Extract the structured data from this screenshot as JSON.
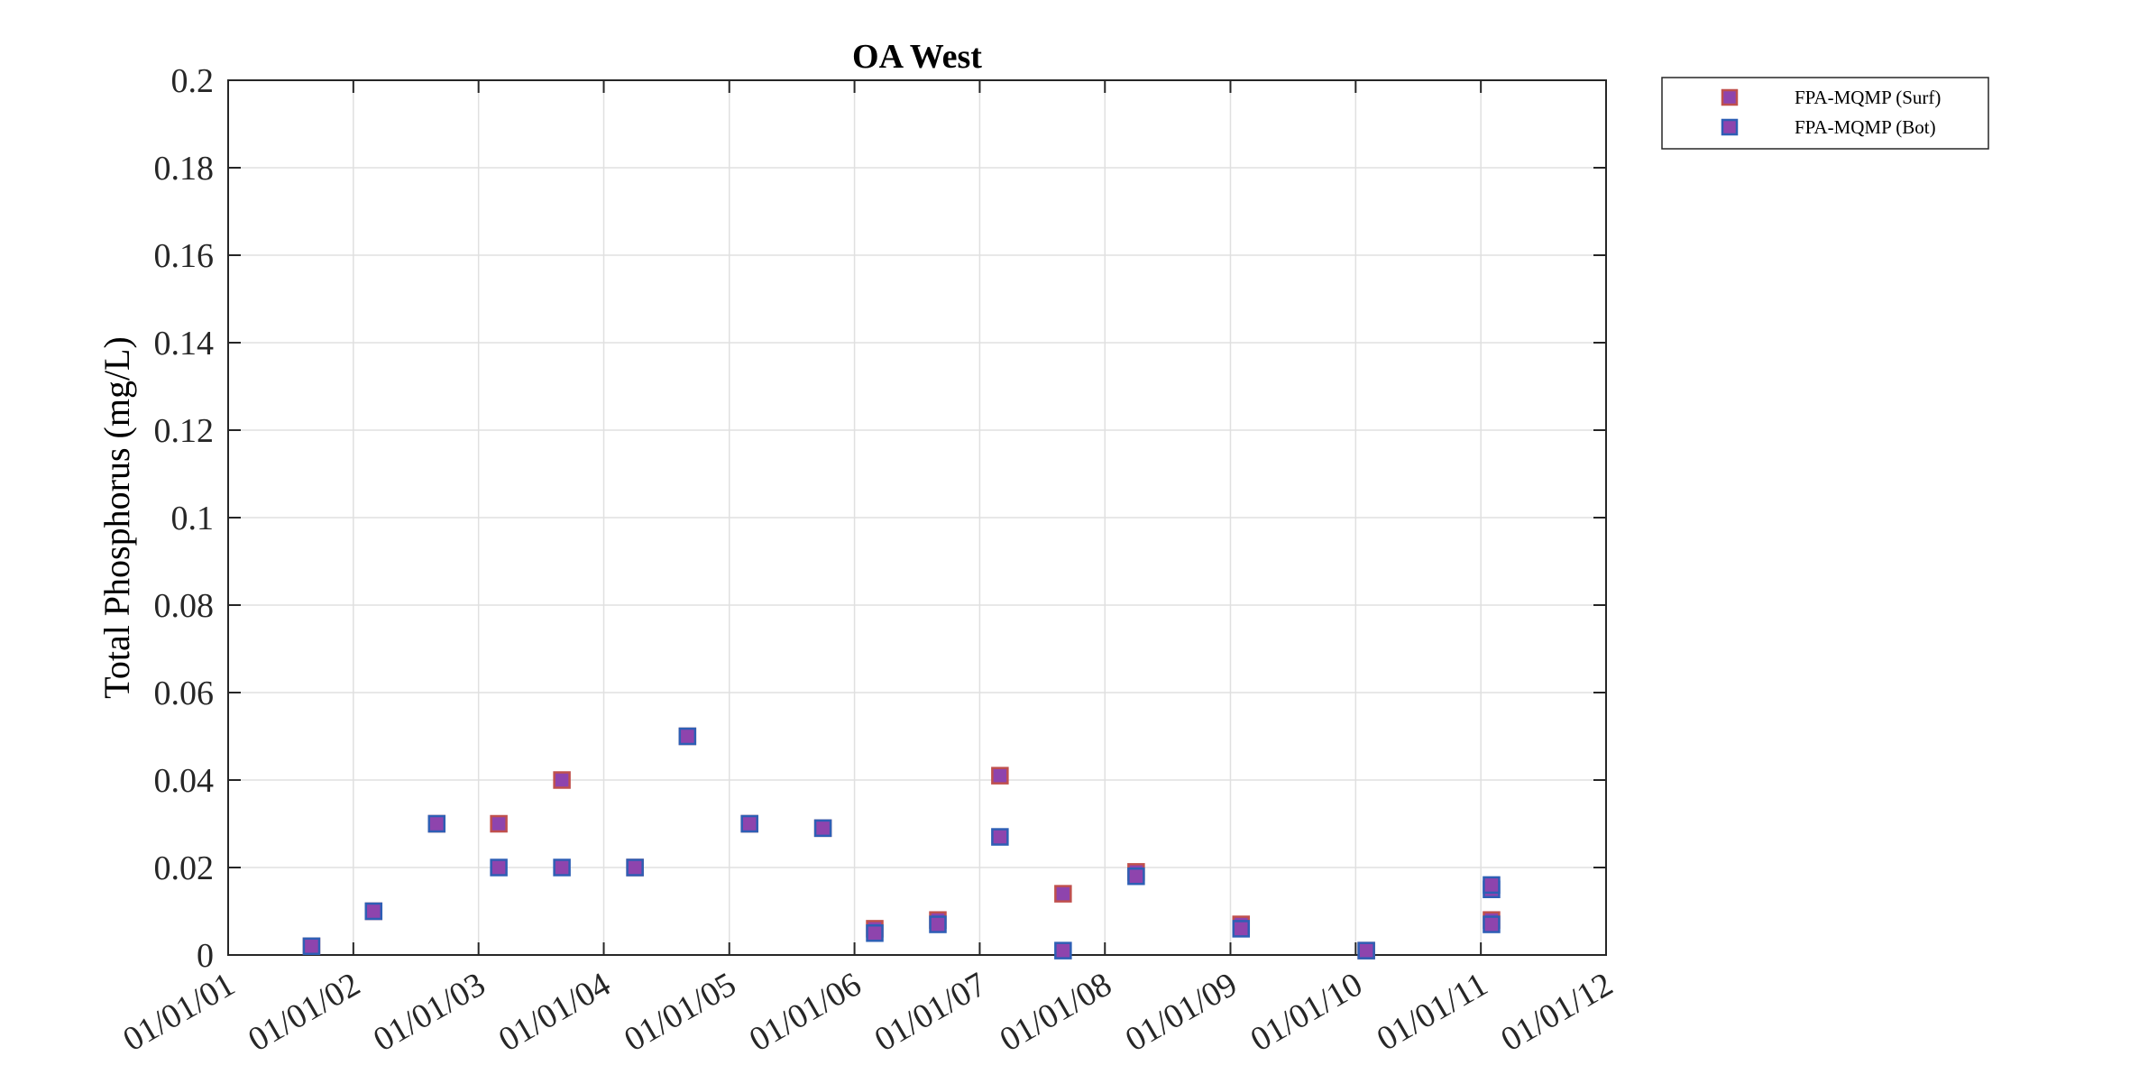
{
  "chart_data": {
    "type": "scatter",
    "title": "OA West",
    "xlabel": "",
    "ylabel": "Total Phosphorus (mg/L)",
    "x_ticks": [
      "01/01/01",
      "01/01/02",
      "01/01/03",
      "01/01/04",
      "01/01/05",
      "01/01/06",
      "01/01/07",
      "01/01/08",
      "01/01/09",
      "01/01/10",
      "01/01/11",
      "01/01/12"
    ],
    "xlim": [
      "01/01/01",
      "01/01/12"
    ],
    "y_ticks": [
      "0",
      "0.02",
      "0.04",
      "0.06",
      "0.08",
      "0.1",
      "0.12",
      "0.14",
      "0.16",
      "0.18",
      "0.2"
    ],
    "ylim": [
      0,
      0.2
    ],
    "grid": true,
    "legend_position": "outside-top-right",
    "series": [
      {
        "name": "FPA-MQMP (Surf)",
        "marker": "square",
        "fill_color": "#8e44ad",
        "edge_color": "#c0504d",
        "points": [
          {
            "x": "01/09/01",
            "y": 0.002
          },
          {
            "x": "01/03/02",
            "y": 0.01
          },
          {
            "x": "01/09/02",
            "y": 0.03
          },
          {
            "x": "01/03/03",
            "y": 0.03
          },
          {
            "x": "01/09/03",
            "y": 0.04
          },
          {
            "x": "01/04/04",
            "y": 0.02
          },
          {
            "x": "01/09/04",
            "y": 0.05
          },
          {
            "x": "01/03/05",
            "y": 0.03
          },
          {
            "x": "01/10/05",
            "y": 0.029
          },
          {
            "x": "01/03/06",
            "y": 0.006
          },
          {
            "x": "01/09/06",
            "y": 0.008
          },
          {
            "x": "01/03/07",
            "y": 0.041
          },
          {
            "x": "01/09/07",
            "y": 0.014
          },
          {
            "x": "01/04/08",
            "y": 0.019
          },
          {
            "x": "01/02/09",
            "y": 0.007
          },
          {
            "x": "01/02/10",
            "y": 0.001
          },
          {
            "x": "01/02/11",
            "y": 0.008
          }
        ]
      },
      {
        "name": "FPA-MQMP (Bot)",
        "marker": "square",
        "fill_color": "#8e44ad",
        "edge_color": "#2e5fb5",
        "points": [
          {
            "x": "01/09/01",
            "y": 0.002
          },
          {
            "x": "01/03/02",
            "y": 0.01
          },
          {
            "x": "01/09/02",
            "y": 0.03
          },
          {
            "x": "01/03/03",
            "y": 0.02
          },
          {
            "x": "01/09/03",
            "y": 0.02
          },
          {
            "x": "01/04/04",
            "y": 0.02
          },
          {
            "x": "01/09/04",
            "y": 0.05
          },
          {
            "x": "01/03/05",
            "y": 0.03
          },
          {
            "x": "01/10/05",
            "y": 0.029
          },
          {
            "x": "01/03/06",
            "y": 0.005
          },
          {
            "x": "01/09/06",
            "y": 0.007
          },
          {
            "x": "01/03/07",
            "y": 0.027
          },
          {
            "x": "01/09/07",
            "y": 0.001
          },
          {
            "x": "01/04/08",
            "y": 0.018
          },
          {
            "x": "01/02/09",
            "y": 0.006
          },
          {
            "x": "01/02/10",
            "y": 0.001
          },
          {
            "x": "01/02/11",
            "y": 0.015
          },
          {
            "x": "01/02/11",
            "y": 0.016
          },
          {
            "x": "01/02/11",
            "y": 0.007
          }
        ]
      }
    ]
  }
}
